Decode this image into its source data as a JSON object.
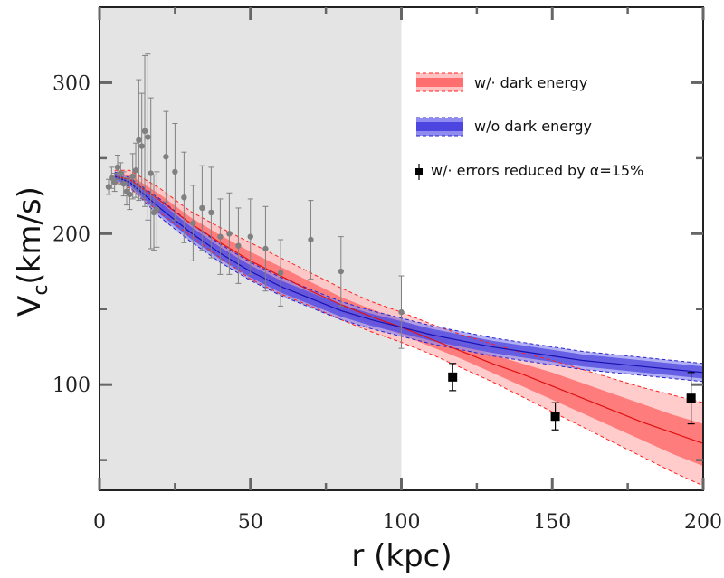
{
  "chart_data": {
    "type": "line",
    "xlabel": "r (kpc)",
    "ylabel": "V_c (km/s)",
    "ylabel_main": "V",
    "ylabel_sub": "c",
    "ylabel_unit": "(km/s)",
    "xlim": [
      0,
      200
    ],
    "ylim": [
      30,
      350
    ],
    "x_ticks": [
      0,
      50,
      100,
      150,
      200
    ],
    "y_ticks": [
      100,
      200,
      300
    ],
    "shaded_region": {
      "x0": 0,
      "x1": 100,
      "color": "#e4e4e4"
    },
    "legend": {
      "placement": "top-right",
      "items": [
        {
          "label": "w/·  dark energy",
          "kind": "band",
          "color": "#ff6b6b"
        },
        {
          "label": "w/o  dark energy",
          "kind": "band",
          "color": "#5a52e6"
        },
        {
          "label": "w/·  errors reduced by α=15%",
          "kind": "point",
          "color": "#000000"
        }
      ]
    },
    "series": [
      {
        "name": "w/· dark energy",
        "color": "#ff3333",
        "x": [
          5,
          10,
          20,
          30,
          40,
          50,
          60,
          70,
          80,
          90,
          100,
          110,
          120,
          130,
          140,
          150,
          160,
          170,
          180,
          190,
          200
        ],
        "y": [
          238,
          236,
          222,
          207,
          194,
          182,
          172,
          162,
          153,
          145,
          138,
          130,
          122,
          114,
          107,
          99,
          91,
          83,
          75,
          68,
          61
        ],
        "inner_low": [
          236,
          233,
          218,
          203,
          189,
          176,
          166,
          157,
          148,
          140,
          133,
          125,
          117,
          108,
          99,
          90,
          81,
          72,
          63,
          54,
          46
        ],
        "inner_high": [
          240,
          239,
          226,
          211,
          199,
          188,
          178,
          168,
          158,
          150,
          143,
          135,
          127,
          120,
          114,
          108,
          101,
          94,
          87,
          80,
          74
        ],
        "outer_low": [
          234,
          230,
          214,
          199,
          184,
          170,
          160,
          152,
          143,
          135,
          128,
          120,
          111,
          102,
          92,
          82,
          72,
          62,
          52,
          42,
          33
        ],
        "outer_high": [
          242,
          242,
          230,
          215,
          204,
          194,
          184,
          174,
          164,
          155,
          148,
          140,
          133,
          127,
          121,
          116,
          110,
          104,
          98,
          93,
          88
        ]
      },
      {
        "name": "w/o dark energy",
        "color": "#3333dd",
        "x": [
          5,
          10,
          20,
          30,
          40,
          50,
          60,
          70,
          80,
          90,
          100,
          110,
          120,
          130,
          140,
          150,
          160,
          170,
          180,
          190,
          200
        ],
        "y": [
          238,
          234,
          217,
          201,
          187,
          175,
          165,
          157,
          149,
          143,
          138,
          133,
          129,
          125,
          122,
          119,
          116,
          114,
          112,
          110,
          108
        ],
        "inner_low": [
          236,
          232,
          213,
          197,
          183,
          171,
          161,
          153,
          145,
          139,
          134,
          129,
          125,
          121,
          118,
          115,
          112,
          110,
          108,
          106,
          104
        ],
        "inner_high": [
          240,
          236,
          221,
          205,
          191,
          179,
          169,
          161,
          153,
          147,
          142,
          137,
          133,
          129,
          126,
          123,
          120,
          118,
          116,
          114,
          112
        ],
        "outer_low": [
          235,
          231,
          211,
          195,
          181,
          169,
          159,
          151,
          143,
          137,
          132,
          127,
          123,
          119,
          116,
          113,
          110,
          108,
          106,
          104,
          102
        ],
        "outer_high": [
          241,
          237,
          223,
          207,
          193,
          181,
          171,
          163,
          155,
          149,
          144,
          139,
          135,
          131,
          128,
          125,
          122,
          120,
          118,
          116,
          114
        ]
      }
    ],
    "observed_points": {
      "color": "#808080",
      "x": [
        3,
        4,
        5,
        6,
        7,
        8,
        9,
        10,
        11,
        12,
        13,
        14,
        15,
        16,
        17,
        18,
        19,
        22,
        25,
        28,
        31,
        34,
        37,
        40,
        43,
        46,
        50,
        55,
        60,
        70,
        80,
        100
      ],
      "y": [
        231,
        237,
        234,
        244,
        240,
        233,
        228,
        226,
        238,
        242,
        262,
        258,
        268,
        264,
        240,
        214,
        216,
        251,
        241,
        224,
        207,
        217,
        214,
        198,
        200,
        192,
        198,
        190,
        174,
        196,
        175,
        148
      ],
      "err": [
        5,
        7,
        6,
        8,
        7,
        8,
        9,
        10,
        15,
        18,
        40,
        35,
        50,
        55,
        50,
        25,
        25,
        30,
        32,
        30,
        25,
        28,
        30,
        25,
        27,
        25,
        25,
        28,
        22,
        26,
        23,
        24
      ]
    },
    "reduced_error_points": {
      "color": "#000000",
      "x": [
        117,
        151,
        196
      ],
      "y": [
        105,
        79,
        91
      ],
      "err": [
        9,
        9,
        17
      ]
    }
  }
}
